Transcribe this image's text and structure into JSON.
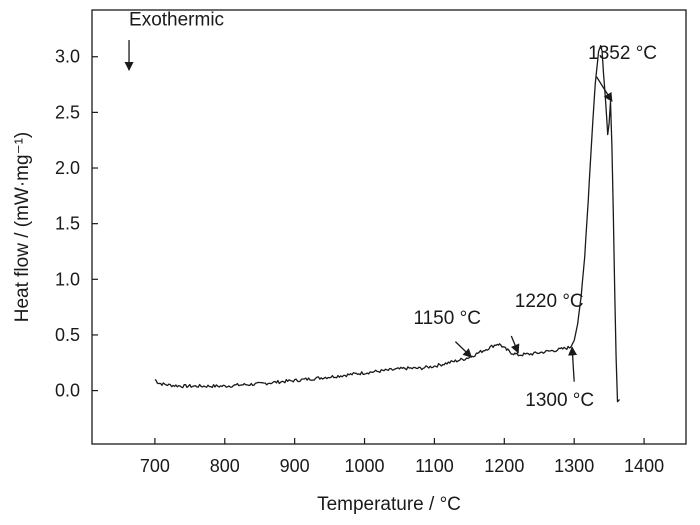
{
  "chart_data": {
    "type": "line",
    "title": "",
    "xlabel": "Temperature / °C",
    "ylabel": "Heat flow / (mW·mg⁻¹)",
    "xlim": [
      610,
      1460
    ],
    "ylim": [
      -0.48,
      3.42
    ],
    "xticks": [
      700,
      800,
      900,
      1000,
      1100,
      1200,
      1300,
      1400
    ],
    "yticks": [
      0.0,
      0.5,
      1.0,
      1.5,
      2.0,
      2.5,
      3.0
    ],
    "grid": false,
    "legend": "none",
    "line_color": "#1a1a1a",
    "series": [
      {
        "x": [
          700,
          705,
          710,
          720,
          740,
          760,
          780,
          800,
          820,
          850,
          880,
          900,
          930,
          960,
          1000,
          1030,
          1060,
          1080,
          1100,
          1120,
          1140,
          1150,
          1160,
          1170,
          1180,
          1190,
          1195,
          1200,
          1205,
          1210,
          1215,
          1220,
          1240,
          1260,
          1280,
          1295,
          1300,
          1305,
          1310,
          1315,
          1320,
          1325,
          1330,
          1335,
          1338,
          1340,
          1342,
          1345,
          1348,
          1350,
          1352,
          1354,
          1356,
          1358,
          1360,
          1362,
          1365
        ],
        "y": [
          0.1,
          0.07,
          0.06,
          0.05,
          0.04,
          0.04,
          0.04,
          0.04,
          0.05,
          0.06,
          0.08,
          0.09,
          0.11,
          0.13,
          0.16,
          0.18,
          0.2,
          0.2,
          0.22,
          0.25,
          0.28,
          0.3,
          0.33,
          0.36,
          0.39,
          0.42,
          0.41,
          0.38,
          0.36,
          0.34,
          0.33,
          0.32,
          0.33,
          0.35,
          0.37,
          0.39,
          0.45,
          0.6,
          0.85,
          1.2,
          1.7,
          2.25,
          2.75,
          3.05,
          3.1,
          3.05,
          2.85,
          2.6,
          2.3,
          2.4,
          2.6,
          2.2,
          1.6,
          0.9,
          0.3,
          -0.1,
          -0.08
        ]
      }
    ],
    "annotations": [
      {
        "text": "Exothermic",
        "x": 663,
        "y": 3.28
      },
      {
        "text": "1352 °C",
        "x": 1320,
        "y": 2.98
      },
      {
        "text": "1150 °C",
        "x": 1070,
        "y": 0.6
      },
      {
        "text": "1220 °C",
        "x": 1215,
        "y": 0.75
      },
      {
        "text": "1300 °C",
        "x": 1230,
        "y": -0.14
      }
    ]
  }
}
